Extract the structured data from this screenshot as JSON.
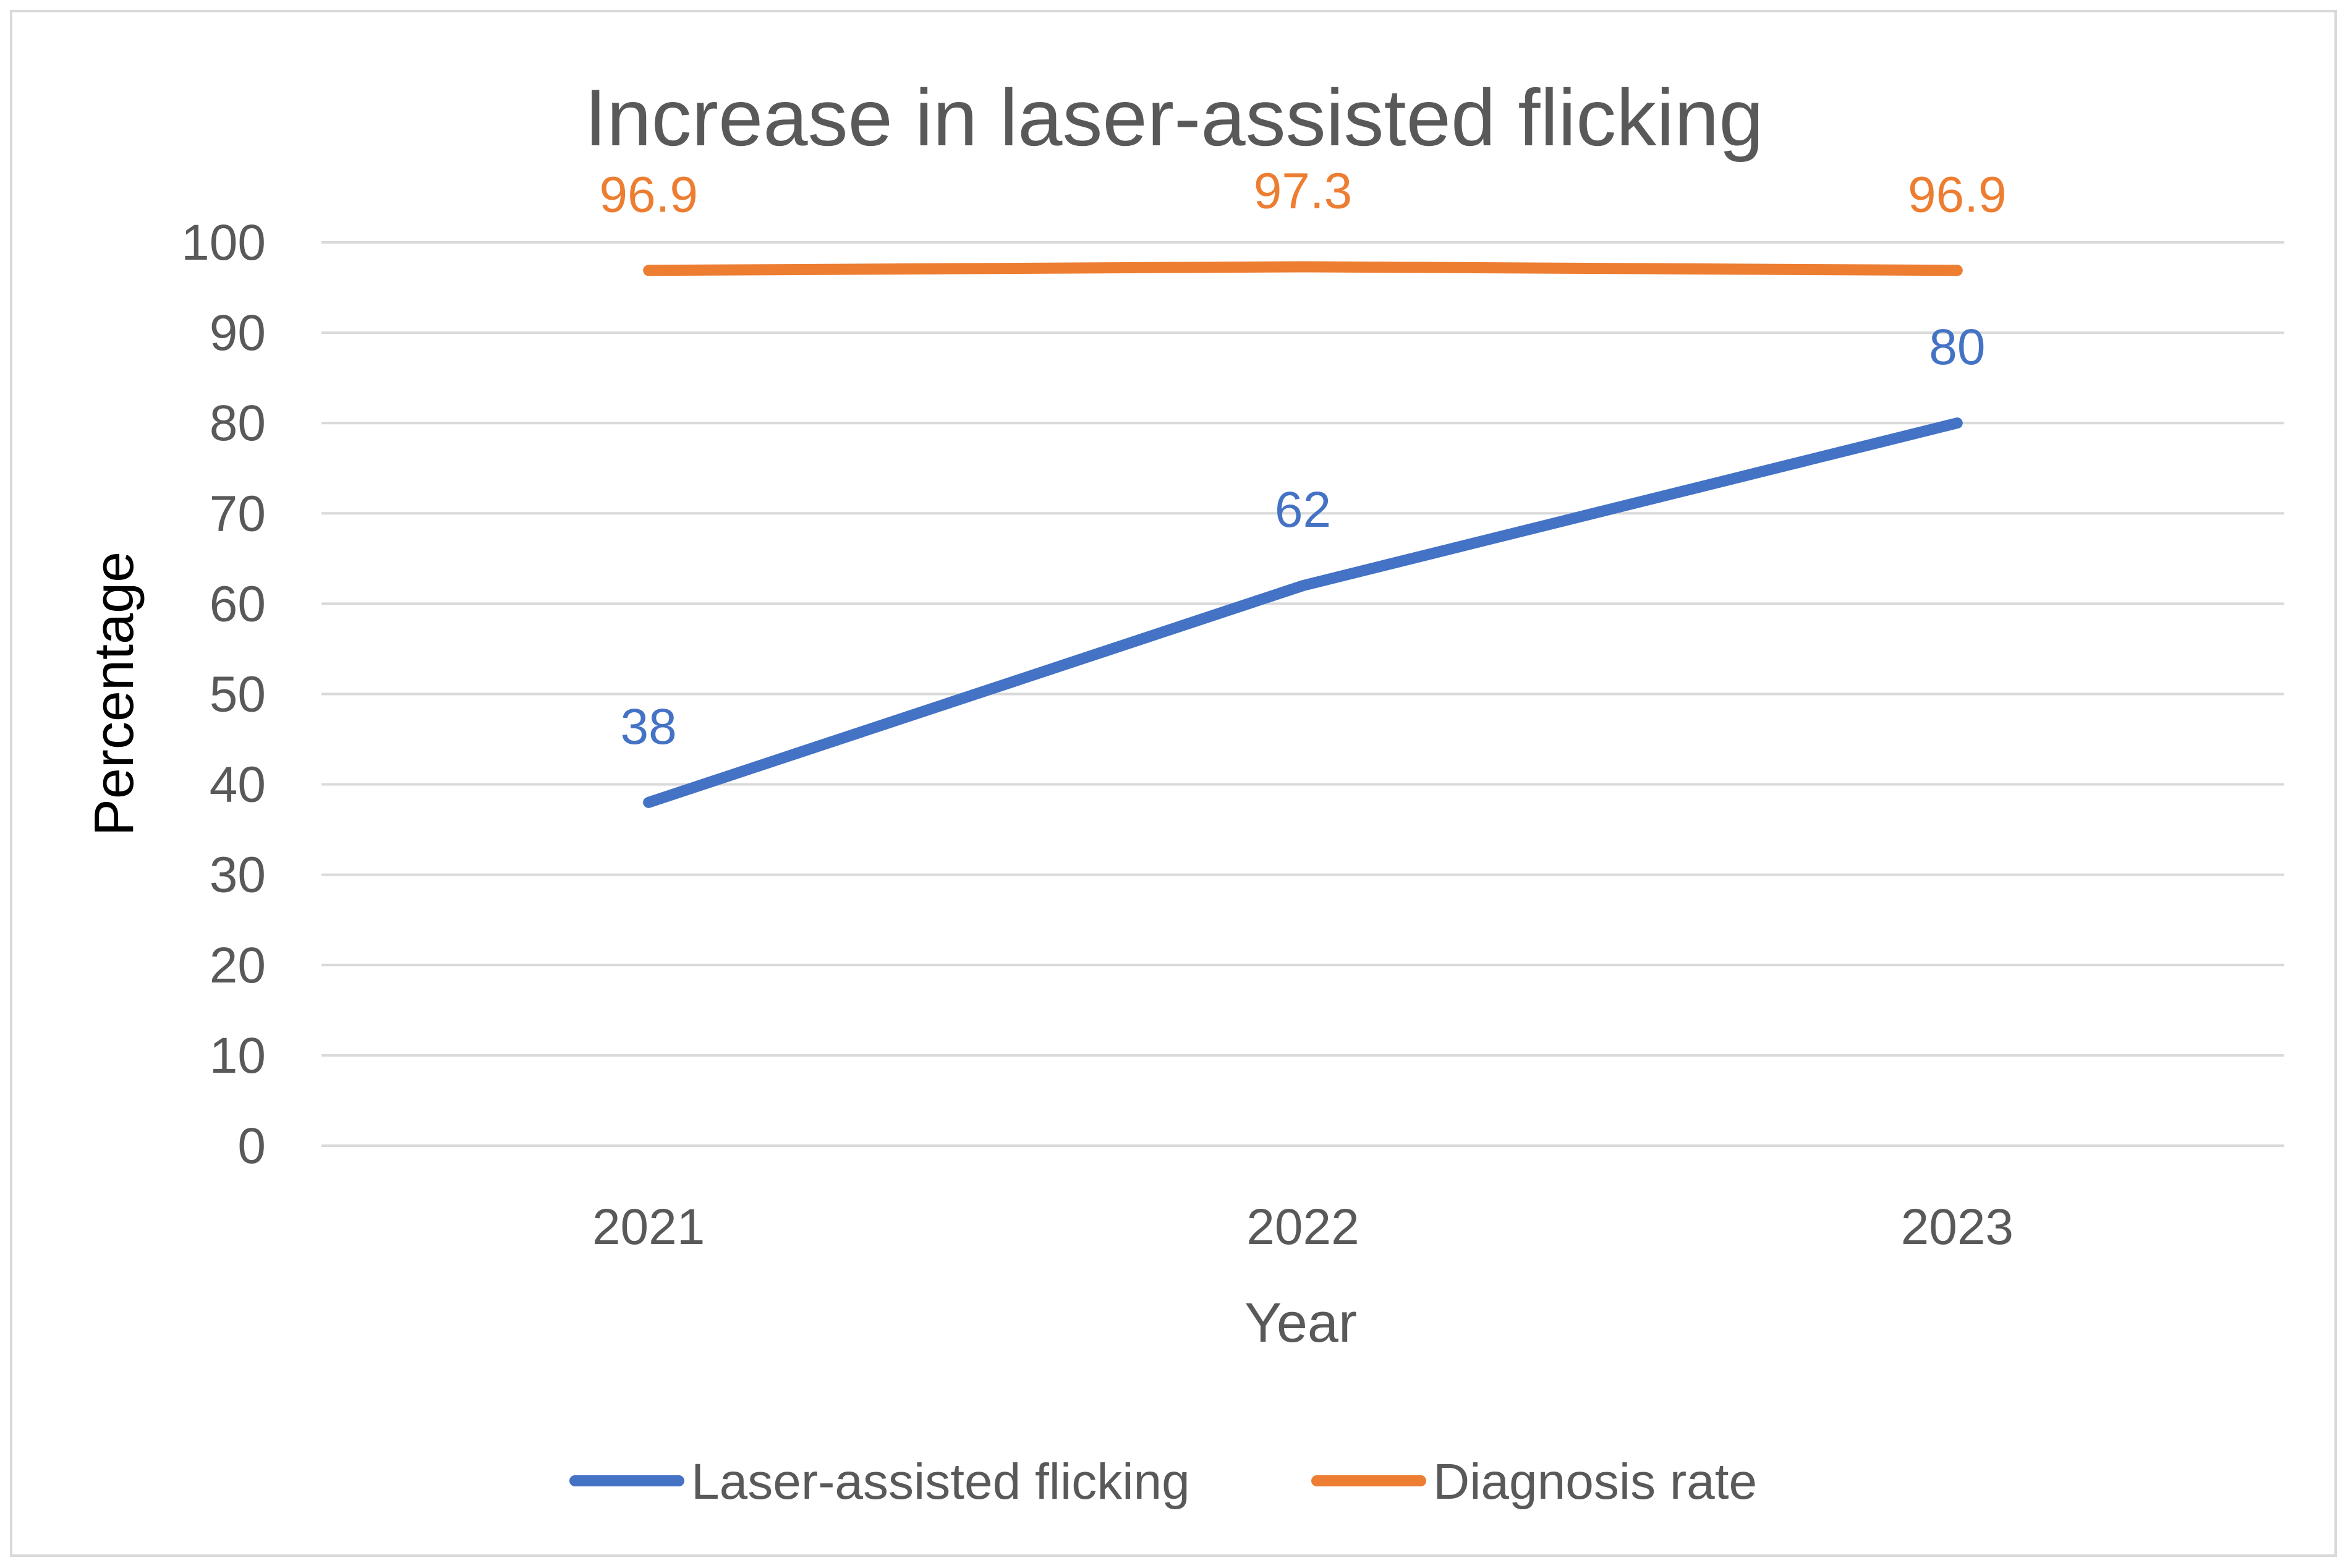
{
  "chart_data": {
    "type": "line",
    "title": "Increase in laser-assisted flicking",
    "xlabel": "Year",
    "ylabel": "Percentage",
    "categories": [
      "2021",
      "2022",
      "2023"
    ],
    "ylim": [
      0,
      100
    ],
    "yticks": [
      0,
      10,
      20,
      30,
      40,
      50,
      60,
      70,
      80,
      90,
      100
    ],
    "grid": true,
    "legend_position": "bottom",
    "series": [
      {
        "name": "Laser-assisted flicking",
        "values": [
          38,
          62,
          80
        ],
        "labels": [
          "38",
          "62",
          "80"
        ],
        "color": "#4472c4"
      },
      {
        "name": "Diagnosis rate",
        "values": [
          96.9,
          97.3,
          96.9
        ],
        "labels": [
          "96.9",
          "97.3",
          "96.9"
        ],
        "color": "#ed7d31"
      }
    ]
  }
}
